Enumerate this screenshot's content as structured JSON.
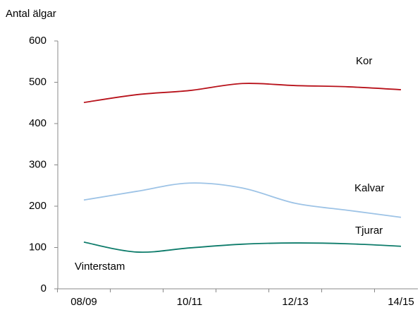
{
  "chart_data": {
    "type": "line",
    "y_label": "Antal älgar",
    "annotation": "Vinterstam",
    "categories": [
      "08/09",
      null,
      "10/11",
      null,
      "12/13",
      null,
      "14/15"
    ],
    "series": [
      {
        "name": "Kor",
        "color": "#b8121b",
        "values": [
          451,
          470,
          480,
          497,
          492,
          489,
          482
        ]
      },
      {
        "name": "Kalvar",
        "color": "#9dc3e6",
        "values": [
          215,
          236,
          256,
          244,
          207,
          190,
          173
        ]
      },
      {
        "name": "Tjurar",
        "color": "#0e7c6b",
        "values": [
          113,
          89,
          99,
          108,
          111,
          109,
          103
        ]
      }
    ],
    "ylim": [
      0,
      600
    ],
    "yticks": [
      0,
      100,
      200,
      300,
      400,
      500,
      600
    ],
    "grid": false
  }
}
